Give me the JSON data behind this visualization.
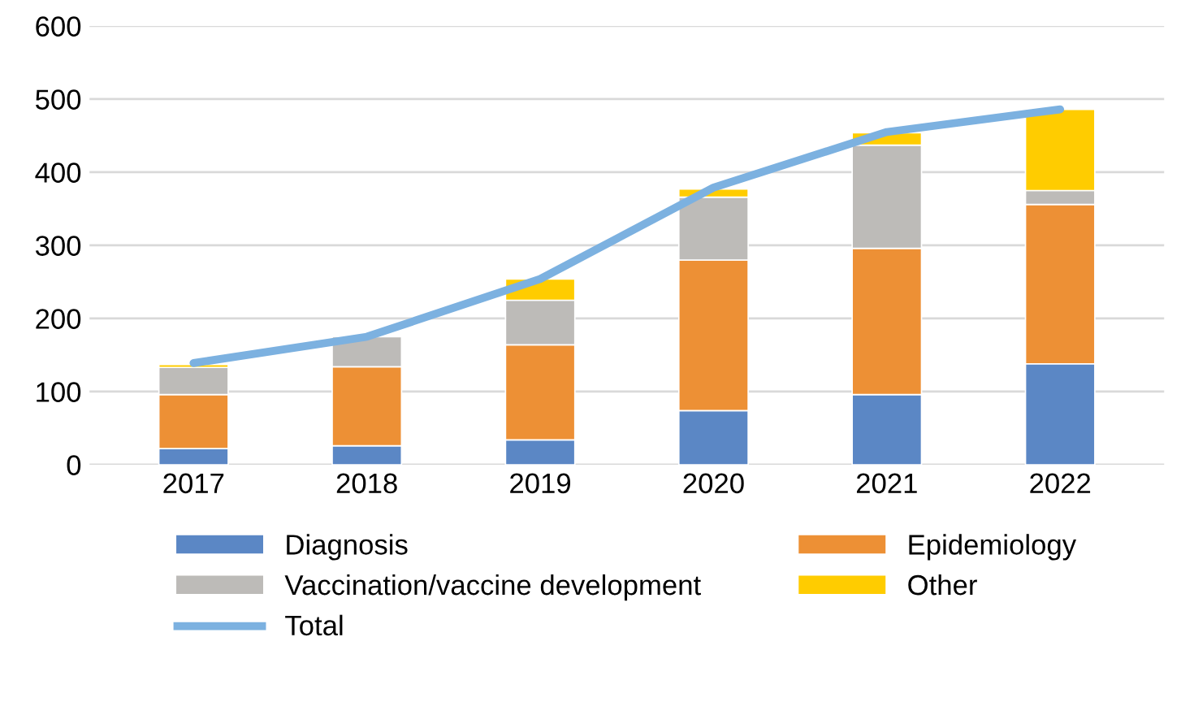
{
  "chart_data": {
    "type": "bar",
    "stacked": true,
    "categories": [
      "2017",
      "2018",
      "2019",
      "2020",
      "2021",
      "2022"
    ],
    "series": [
      {
        "name": "Diagnosis",
        "color": "#5b87c5",
        "values": [
          22,
          26,
          34,
          74,
          96,
          138
        ]
      },
      {
        "name": "Epidemiology",
        "color": "#ed9035",
        "values": [
          74,
          108,
          130,
          206,
          200,
          218
        ]
      },
      {
        "name": "Vaccination/vaccine development",
        "color": "#bdbbb8",
        "values": [
          37,
          41,
          61,
          86,
          141,
          19
        ]
      },
      {
        "name": "Other",
        "color": "#ffcc00",
        "values": [
          4,
          null,
          29,
          11,
          17,
          111
        ]
      },
      {
        "name": "Total",
        "type": "line",
        "color": "#7cb1e0",
        "values": [
          139,
          175,
          254,
          379,
          455,
          486
        ]
      }
    ],
    "ylim": [
      0,
      600
    ],
    "yticks": [
      0,
      100,
      200,
      300,
      400,
      500,
      600
    ],
    "grid": "y",
    "legend": "bottom",
    "marker": "none",
    "line_style": "solid"
  }
}
